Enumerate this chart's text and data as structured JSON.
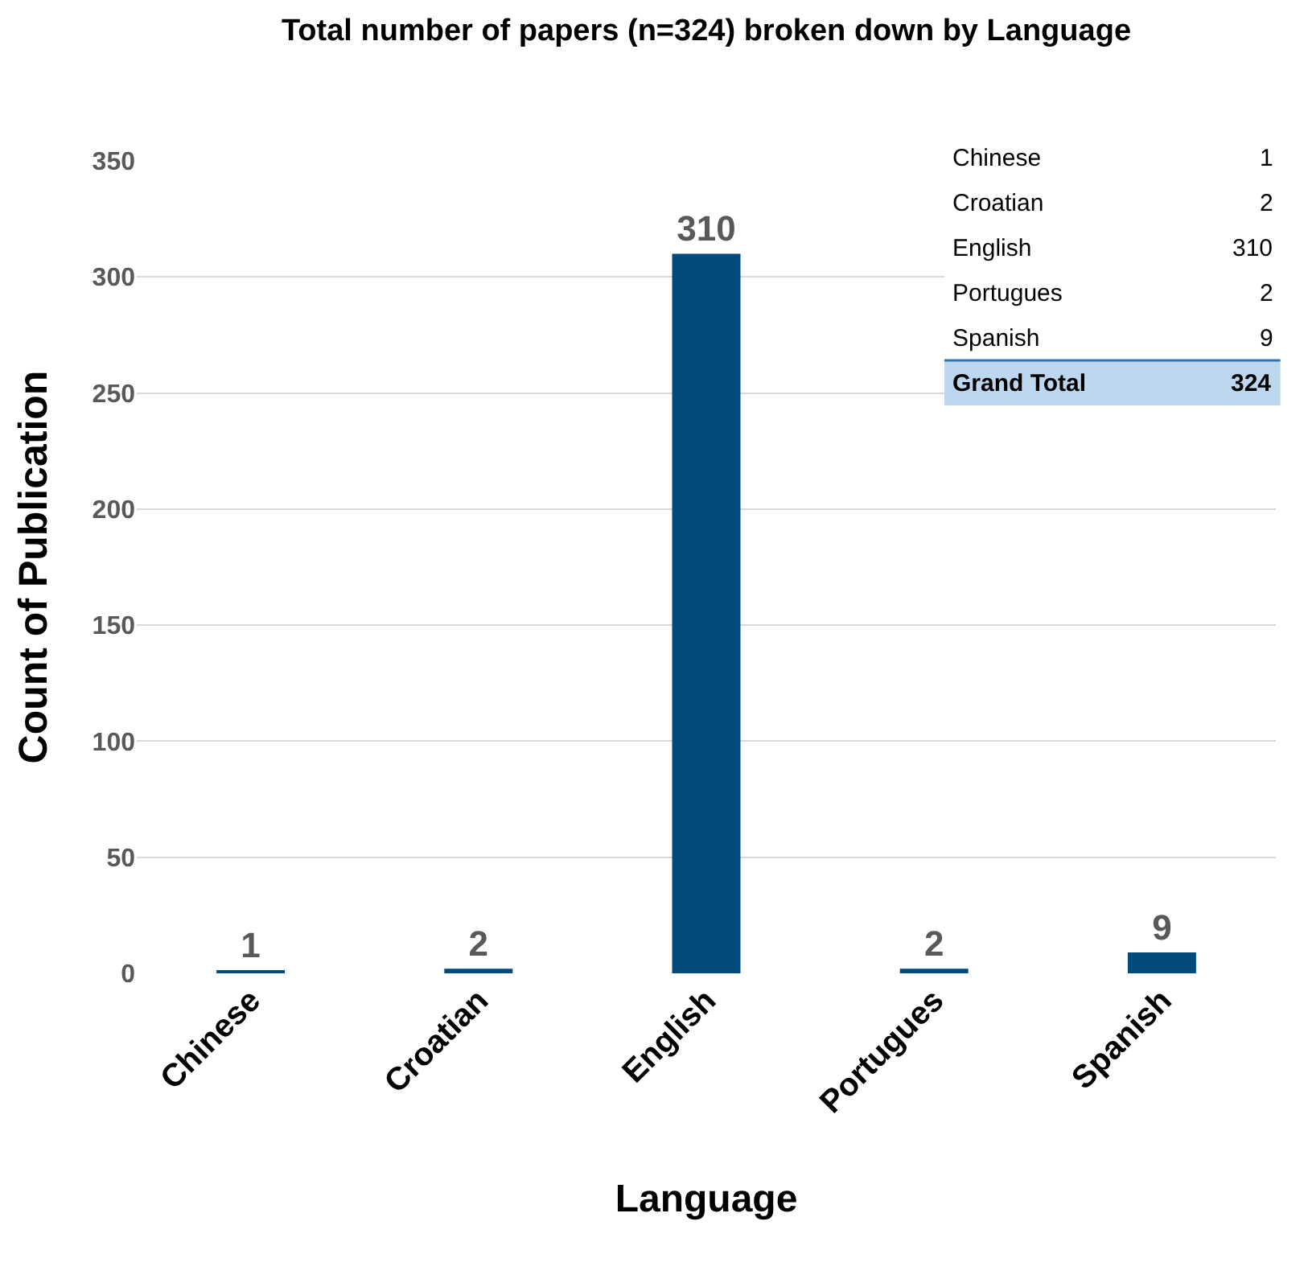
{
  "chart_data": {
    "type": "bar",
    "title": "Total number of papers (n=324) broken down by Language",
    "xlabel": "Language",
    "ylabel": "Count of Publication",
    "categories": [
      "Chinese",
      "Croatian",
      "English",
      "Portugues",
      "Spanish"
    ],
    "values": [
      1,
      2,
      310,
      2,
      9
    ],
    "color": "#004b7c",
    "ylim": [
      0,
      350
    ],
    "yticks": [
      0,
      50,
      100,
      150,
      200,
      250,
      300,
      350
    ],
    "grid": "y",
    "data_labels": true,
    "annotations": [
      "Chinese",
      "1",
      "Croatian",
      "2",
      "English",
      "310",
      "Portugues",
      "2",
      "Spanish",
      "9",
      "Grand Total",
      "324"
    ]
  }
}
